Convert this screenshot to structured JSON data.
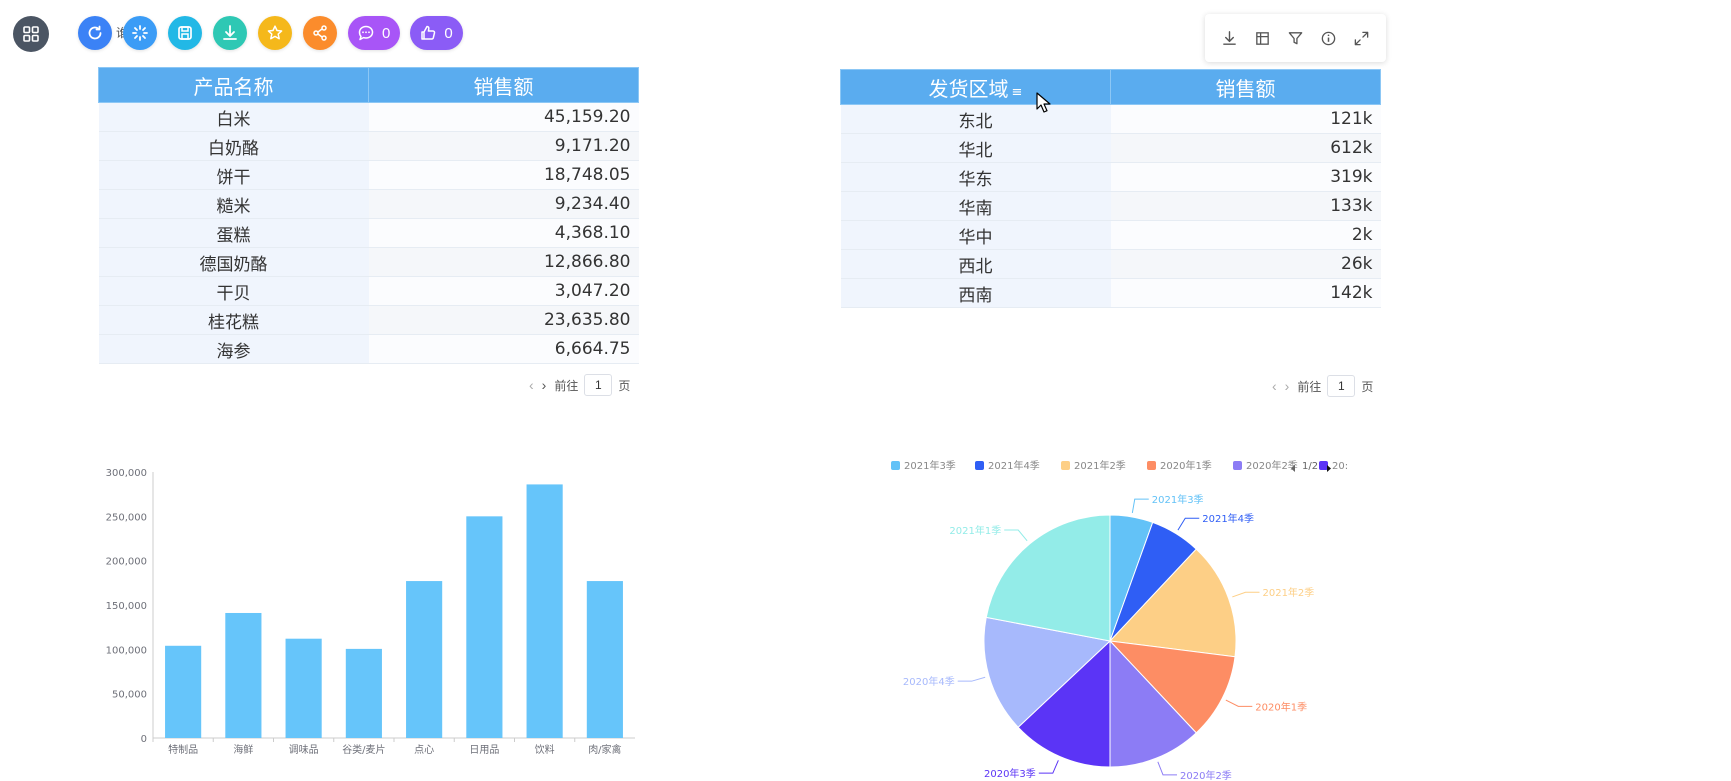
{
  "toolbar": {
    "ghost_label": "谁",
    "buttons": [
      {
        "name": "refresh-button",
        "icon": "refresh-icon",
        "color": "#3b82f6"
      },
      {
        "name": "loading-button",
        "icon": "loading-icon",
        "color": "#3b9cf6"
      },
      {
        "name": "save-button",
        "icon": "save-icon",
        "color": "#22b8e6"
      },
      {
        "name": "download-button",
        "icon": "download-icon",
        "color": "#2ec8b4"
      },
      {
        "name": "favorite-button",
        "icon": "star-icon",
        "color": "#f5b81b"
      },
      {
        "name": "share-button",
        "icon": "share-icon",
        "color": "#fb8c2c"
      }
    ],
    "comment_count": "0",
    "like_count": "0",
    "comment_color": "#a855f7",
    "like_color": "#8b5cf6"
  },
  "panel_tools": [
    "download-icon",
    "table-settings-icon",
    "filter-icon",
    "info-icon",
    "fullscreen-icon"
  ],
  "product_table": {
    "headers": [
      "产品名称",
      "销售额"
    ],
    "rows": [
      [
        "白米",
        "45,159.20"
      ],
      [
        "白奶酪",
        "9,171.20"
      ],
      [
        "饼干",
        "18,748.05"
      ],
      [
        "糙米",
        "9,234.40"
      ],
      [
        "蛋糕",
        "4,368.10"
      ],
      [
        "德国奶酪",
        "12,866.80"
      ],
      [
        "干贝",
        "3,047.20"
      ],
      [
        "桂花糕",
        "23,635.80"
      ],
      [
        "海参",
        "6,664.75"
      ]
    ],
    "pager": {
      "prefix": "前往",
      "page": "1",
      "suffix": "页"
    }
  },
  "region_table": {
    "headers": [
      "发货区域",
      "销售额"
    ],
    "sort_indicator": "≡",
    "rows": [
      [
        "东北",
        "121k"
      ],
      [
        "华北",
        "612k"
      ],
      [
        "华东",
        "319k"
      ],
      [
        "华南",
        "133k"
      ],
      [
        "华中",
        "2k"
      ],
      [
        "西北",
        "26k"
      ],
      [
        "西南",
        "142k"
      ]
    ],
    "pager": {
      "prefix": "前往",
      "page": "1",
      "suffix": "页"
    }
  },
  "chart_data": [
    {
      "type": "bar",
      "categories": [
        "特制品",
        "海鲜",
        "调味品",
        "谷类/麦片",
        "点心",
        "日用品",
        "饮料",
        "肉/家禽"
      ],
      "values": [
        104000,
        141000,
        112000,
        100500,
        177000,
        250000,
        286000,
        177000
      ],
      "ylim": [
        0,
        300000
      ],
      "yticks": [
        "0",
        "50,000",
        "100,000",
        "150,000",
        "200,000",
        "250,000",
        "300,000"
      ],
      "color": "#66c5fa"
    },
    {
      "type": "pie",
      "legend_items": [
        "2021年3季",
        "2021年4季",
        "2021年2季",
        "2020年1季",
        "2020年2季",
        "20:"
      ],
      "legend_page": "1/2",
      "slices": [
        {
          "label": "2021年3季",
          "value": 5.5,
          "color": "#63c2f7"
        },
        {
          "label": "2021年4季",
          "value": 6.5,
          "color": "#2f5ef5"
        },
        {
          "label": "2021年2季",
          "value": 15,
          "color": "#fdcf86"
        },
        {
          "label": "2020年1季",
          "value": 11,
          "color": "#fd8d64"
        },
        {
          "label": "2020年2季",
          "value": 12,
          "color": "#8c7cf5"
        },
        {
          "label": "2020年3季",
          "value": 13,
          "color": "#5b34f6"
        },
        {
          "label": "2020年4季",
          "value": 15,
          "color": "#a7b9fc"
        },
        {
          "label": "2021年1季",
          "value": 22,
          "color": "#93ece8"
        }
      ]
    }
  ]
}
